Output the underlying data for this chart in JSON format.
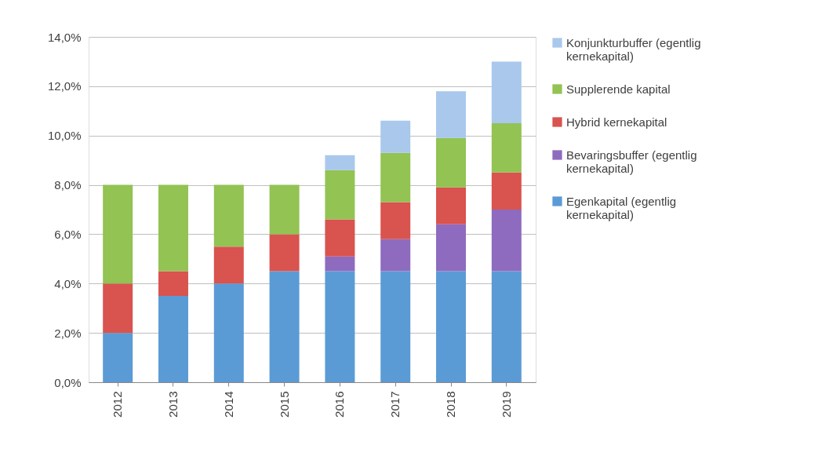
{
  "chart_data": {
    "type": "bar",
    "stacked": true,
    "categories": [
      "2012",
      "2013",
      "2014",
      "2015",
      "2016",
      "2017",
      "2018",
      "2019"
    ],
    "series": [
      {
        "name": "Egenkapital (egentlig kernekapital)",
        "color": "#5b9bd5",
        "values": [
          2.0,
          3.5,
          4.0,
          4.5,
          4.5,
          4.5,
          4.5,
          4.5
        ]
      },
      {
        "name": "Bevaringsbuffer (egentlig kernekapital)",
        "color": "#8e6bbf",
        "values": [
          0,
          0,
          0,
          0,
          0.6,
          1.3,
          1.9,
          2.5
        ]
      },
      {
        "name": "Hybrid kernekapital",
        "color": "#d9534f",
        "values": [
          2.0,
          1.0,
          1.5,
          1.5,
          1.5,
          1.5,
          1.5,
          1.5
        ]
      },
      {
        "name": "Supplerende kapital",
        "color": "#92c353",
        "values": [
          4.0,
          3.5,
          2.5,
          2.0,
          2.0,
          2.0,
          2.0,
          2.0
        ]
      },
      {
        "name": "Konjunkturbuffer (egentlig kernekapital)",
        "color": "#a9c8ec",
        "values": [
          0,
          0,
          0,
          0,
          0.6,
          1.3,
          1.9,
          2.5
        ]
      }
    ],
    "ylim": [
      0,
      14
    ],
    "yticks": [
      {
        "value": 0,
        "label": "0,0%"
      },
      {
        "value": 2,
        "label": "2,0%"
      },
      {
        "value": 4,
        "label": "4,0%"
      },
      {
        "value": 6,
        "label": "6,0%"
      },
      {
        "value": 8,
        "label": "8,0%"
      },
      {
        "value": 10,
        "label": "10,0%"
      },
      {
        "value": 12,
        "label": "12,0%"
      },
      {
        "value": 14,
        "label": "14,0%"
      }
    ],
    "grid": "y",
    "legend": "right"
  }
}
